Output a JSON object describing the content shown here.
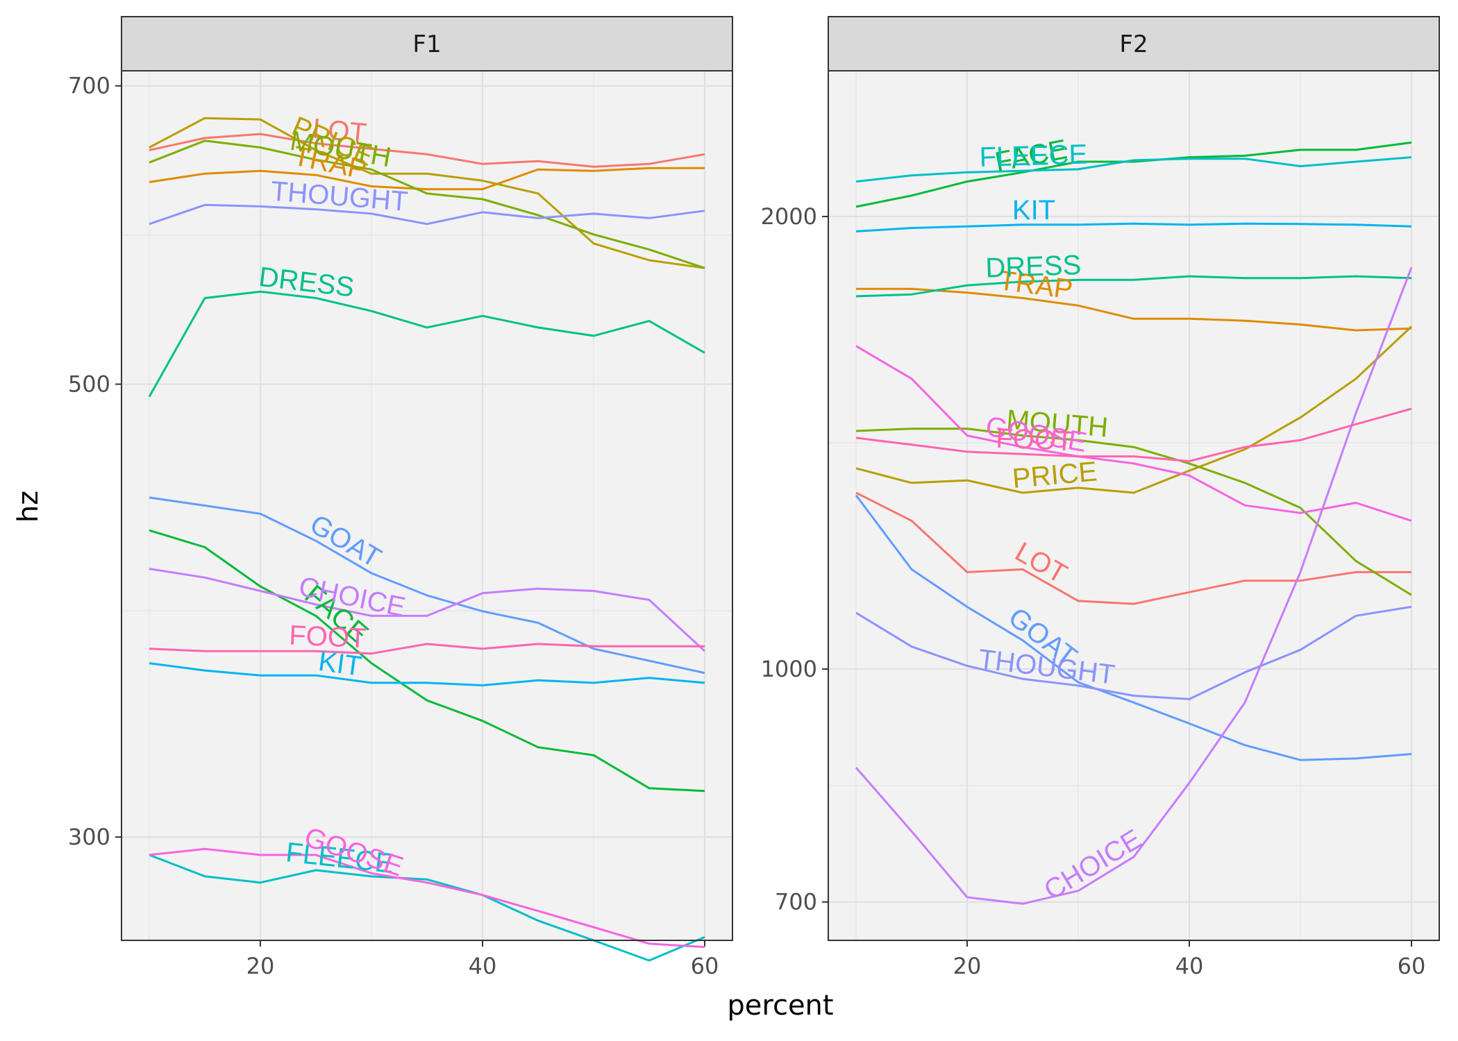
{
  "chart_data": {
    "type": "line",
    "xlabel": "percent",
    "ylabel": "hz",
    "y_scale": "log",
    "grid": true,
    "legend": "none (direct labels)",
    "colors": {
      "LOT": "#F8766D",
      "TRAP": "#DE8C00",
      "PRICE": "#B79F00",
      "MOUTH": "#7CAE00",
      "FACE": "#00BA38",
      "DRESS": "#00C08B",
      "FLEECE": "#00BFC4",
      "KIT": "#00B4F0",
      "GOAT": "#619CFF",
      "THOUGHT": "#8B93FF",
      "CHOICE": "#C77CFF",
      "GOOSE": "#F564E3",
      "FOOT": "#FF64B0"
    },
    "panels": [
      {
        "strip": "F1",
        "x_ticks": [
          20,
          40,
          60
        ],
        "y_ticks": [
          300,
          500,
          700
        ],
        "xlim": [
          7.5,
          62.5
        ],
        "ylim": [
          267,
          712
        ],
        "series": [
          {
            "name": "LOT",
            "x": [
              10,
              15,
              20,
              25,
              30,
              35,
              40,
              45,
              50,
              55,
              60
            ],
            "y": [
              651,
              660,
              663,
              656,
              652,
              648,
              641,
              643,
              639,
              641,
              648
            ],
            "label_at": 27
          },
          {
            "name": "TRAP",
            "x": [
              10,
              15,
              20,
              25,
              30,
              35,
              40,
              45,
              50,
              55,
              60
            ],
            "y": [
              628,
              634,
              636,
              633,
              625,
              623,
              623,
              637,
              636,
              638,
              638
            ],
            "label_at": 26
          },
          {
            "name": "PRICE",
            "x": [
              10,
              15,
              20,
              25,
              30,
              35,
              40,
              45,
              50,
              55,
              60
            ],
            "y": [
              653,
              675,
              674,
              651,
              634,
              634,
              629,
              620,
              586,
              575,
              570
            ],
            "label_at": 26
          },
          {
            "name": "MOUTH",
            "x": [
              10,
              15,
              20,
              25,
              30,
              35,
              40,
              45,
              50,
              55,
              60
            ],
            "y": [
              642,
              658,
              653,
              644,
              637,
              620,
              616,
              605,
              592,
              582,
              570
            ],
            "label_at": 27
          },
          {
            "name": "FACE",
            "x": [
              10,
              15,
              20,
              25,
              30,
              35,
              40,
              45,
              50,
              55,
              60
            ],
            "y": [
              424,
              416,
              398,
              385,
              365,
              350,
              342,
              332,
              329,
              317,
              316
            ],
            "label_at": 26
          },
          {
            "name": "DRESS",
            "x": [
              10,
              15,
              20,
              25,
              30,
              35,
              40,
              45,
              50,
              55,
              60
            ],
            "y": [
              493,
              551,
              555,
              551,
              543,
              533,
              540,
              533,
              528,
              537,
              518
            ],
            "label_at": 24
          },
          {
            "name": "FLEECE",
            "x": [
              10,
              15,
              20,
              25,
              30,
              35,
              40,
              45,
              50,
              55,
              60
            ],
            "y": [
              294,
              287,
              285,
              289,
              287,
              286,
              281,
              273,
              267,
              261,
              268
            ],
            "label_at": 27
          },
          {
            "name": "KIT",
            "x": [
              10,
              15,
              20,
              25,
              30,
              35,
              40,
              45,
              50,
              55,
              60
            ],
            "y": [
              365,
              362,
              360,
              360,
              357,
              357,
              356,
              358,
              357,
              359,
              357
            ],
            "label_at": 27
          },
          {
            "name": "GOAT",
            "x": [
              10,
              15,
              20,
              25,
              30,
              35,
              40,
              45,
              50,
              55,
              60
            ],
            "y": [
              440,
              436,
              432,
              419,
              404,
              394,
              387,
              382,
              371,
              366,
              361
            ],
            "label_at": 27
          },
          {
            "name": "THOUGHT",
            "x": [
              10,
              15,
              20,
              25,
              30,
              35,
              40,
              45,
              50,
              55,
              60
            ],
            "y": [
              599,
              612,
              611,
              609,
              606,
              599,
              607,
              603,
              606,
              603,
              608
            ],
            "label_at": 27
          },
          {
            "name": "CHOICE",
            "x": [
              10,
              15,
              20,
              25,
              30,
              35,
              40,
              45,
              50,
              55,
              60
            ],
            "y": [
              406,
              402,
              396,
              390,
              385,
              385,
              395,
              397,
              396,
              392,
              370
            ],
            "label_at": 28
          },
          {
            "name": "GOOSE",
            "x": [
              10,
              15,
              20,
              25,
              30,
              35,
              40,
              45,
              50,
              55,
              60
            ],
            "y": [
              294,
              296,
              294,
              294,
              288,
              285,
              281,
              276,
              271,
              266,
              265
            ],
            "label_at": 28
          },
          {
            "name": "FOOT",
            "x": [
              10,
              15,
              20,
              25,
              30,
              35,
              40,
              45,
              50,
              55,
              60
            ],
            "y": [
              371,
              370,
              370,
              370,
              369,
              373,
              371,
              373,
              372,
              372,
              372
            ],
            "label_at": 26
          }
        ]
      },
      {
        "strip": "F2",
        "x_ticks": [
          20,
          40,
          60
        ],
        "y_ticks": [
          700,
          1000,
          2000
        ],
        "xlim": [
          7.5,
          62.5
        ],
        "ylim": [
          660,
          2500
        ],
        "series": [
          {
            "name": "LOT",
            "x": [
              10,
              15,
              20,
              25,
              30,
              35,
              40,
              45,
              50,
              55,
              60
            ],
            "y": [
              1310,
              1255,
              1160,
              1165,
              1110,
              1105,
              1125,
              1145,
              1145,
              1160,
              1160
            ],
            "label_at": 26
          },
          {
            "name": "TRAP",
            "x": [
              10,
              15,
              20,
              25,
              30,
              35,
              40,
              45,
              50,
              55,
              60
            ],
            "y": [
              1790,
              1790,
              1780,
              1765,
              1745,
              1710,
              1710,
              1705,
              1695,
              1680,
              1685
            ],
            "label_at": 26
          },
          {
            "name": "PRICE",
            "x": [
              10,
              15,
              20,
              25,
              30,
              35,
              40,
              45,
              50,
              55,
              60
            ],
            "y": [
              1360,
              1330,
              1335,
              1310,
              1320,
              1310,
              1355,
              1400,
              1470,
              1560,
              1690
            ],
            "label_at": 28
          },
          {
            "name": "MOUTH",
            "x": [
              10,
              15,
              20,
              25,
              30,
              35,
              40,
              45,
              50,
              55,
              60
            ],
            "y": [
              1440,
              1445,
              1445,
              1430,
              1420,
              1405,
              1370,
              1330,
              1280,
              1180,
              1120
            ],
            "label_at": 28
          },
          {
            "name": "FACE",
            "x": [
              10,
              15,
              20,
              25,
              30,
              35,
              40,
              45,
              50,
              55,
              60
            ],
            "y": [
              2030,
              2065,
              2110,
              2140,
              2175,
              2175,
              2190,
              2195,
              2215,
              2215,
              2240
            ],
            "label_at": 26
          },
          {
            "name": "DRESS",
            "x": [
              10,
              15,
              20,
              25,
              30,
              35,
              40,
              45,
              50,
              55,
              60
            ],
            "y": [
              1770,
              1775,
              1800,
              1810,
              1815,
              1815,
              1825,
              1820,
              1820,
              1825,
              1820
            ],
            "label_at": 26
          },
          {
            "name": "FLEECE",
            "x": [
              10,
              15,
              20,
              25,
              30,
              35,
              40,
              45,
              50,
              55,
              60
            ],
            "y": [
              2110,
              2130,
              2140,
              2145,
              2150,
              2180,
              2185,
              2185,
              2160,
              2175,
              2190
            ],
            "label_at": 26
          },
          {
            "name": "KIT",
            "x": [
              10,
              15,
              20,
              25,
              30,
              35,
              40,
              45,
              50,
              55,
              60
            ],
            "y": [
              1955,
              1965,
              1970,
              1975,
              1975,
              1978,
              1975,
              1978,
              1977,
              1975,
              1970
            ],
            "label_at": 26
          },
          {
            "name": "GOAT",
            "x": [
              10,
              15,
              20,
              25,
              30,
              35,
              40,
              45,
              50,
              55,
              60
            ],
            "y": [
              1305,
              1165,
              1100,
              1045,
              980,
              950,
              920,
              890,
              870,
              872,
              878
            ],
            "label_at": 26
          },
          {
            "name": "THOUGHT",
            "x": [
              10,
              15,
              20,
              25,
              30,
              35,
              40,
              45,
              50,
              55,
              60
            ],
            "y": [
              1090,
              1035,
              1005,
              985,
              975,
              960,
              955,
              995,
              1030,
              1085,
              1100
            ],
            "label_at": 27
          },
          {
            "name": "CHOICE",
            "x": [
              10,
              15,
              20,
              25,
              30,
              35,
              40,
              45,
              50,
              55,
              60
            ],
            "y": [
              860,
              780,
              705,
              698,
              712,
              750,
              840,
              950,
              1160,
              1480,
              1850
            ],
            "label_at": 32
          },
          {
            "name": "GOOSE",
            "x": [
              10,
              15,
              20,
              25,
              30,
              35,
              40,
              45,
              50,
              55,
              60
            ],
            "y": [
              1640,
              1560,
              1430,
              1405,
              1385,
              1370,
              1345,
              1285,
              1270,
              1290,
              1255
            ],
            "label_at": 26
          },
          {
            "name": "FOOT",
            "x": [
              10,
              15,
              20,
              25,
              30,
              35,
              40,
              45,
              50,
              55,
              60
            ],
            "y": [
              1425,
              1410,
              1395,
              1390,
              1385,
              1385,
              1375,
              1405,
              1420,
              1455,
              1490
            ],
            "label_at": 26
          }
        ]
      }
    ]
  }
}
